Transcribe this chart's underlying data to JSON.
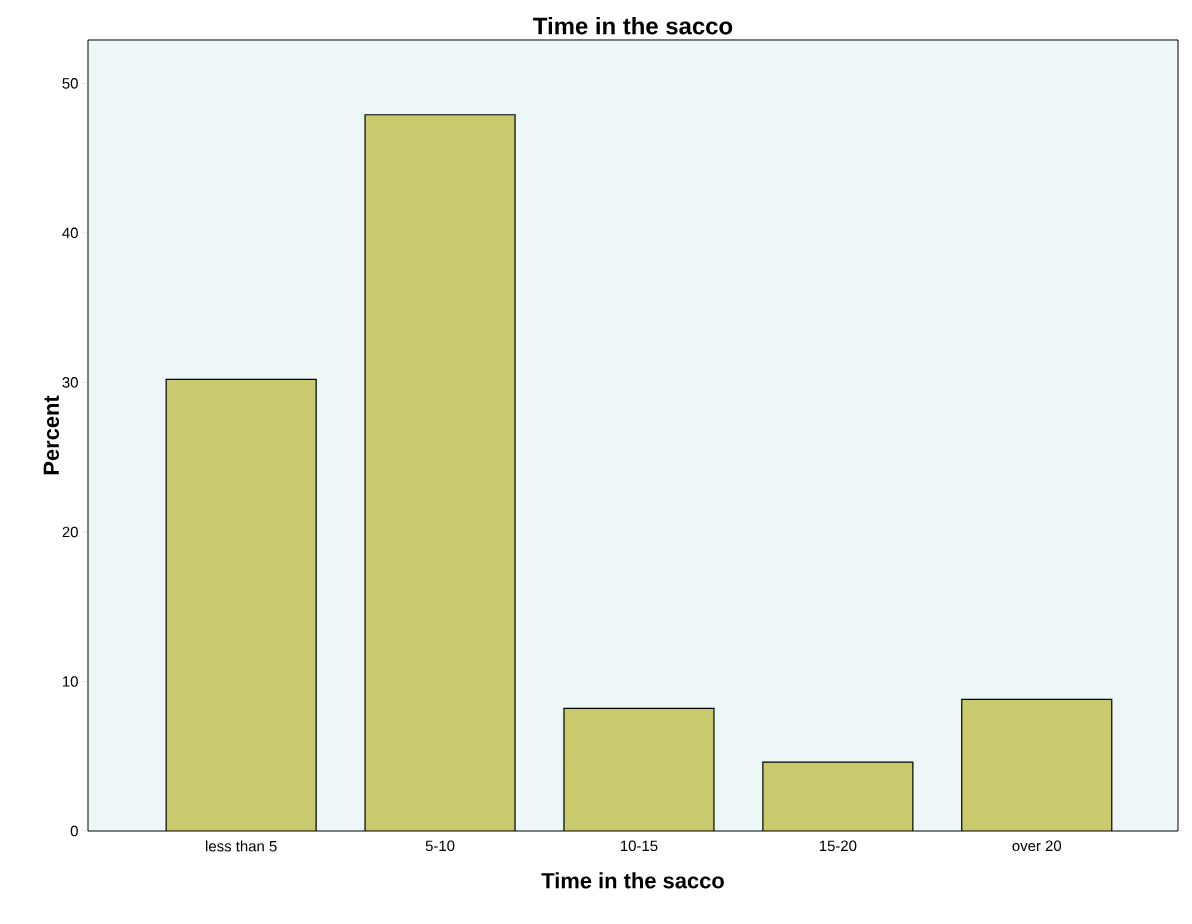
{
  "chart_data": {
    "type": "bar",
    "title": "Time in the sacco",
    "xlabel": "Time in the sacco",
    "ylabel": "Percent",
    "categories": [
      "less than 5",
      "5-10",
      "10-15",
      "15-20",
      "over 20"
    ],
    "values": [
      30.2,
      47.9,
      8.2,
      4.6,
      8.8
    ],
    "color": "#c9c96e",
    "ylim": [
      0,
      52.9
    ],
    "yticks": [
      0,
      10,
      20,
      30,
      40,
      50
    ]
  }
}
